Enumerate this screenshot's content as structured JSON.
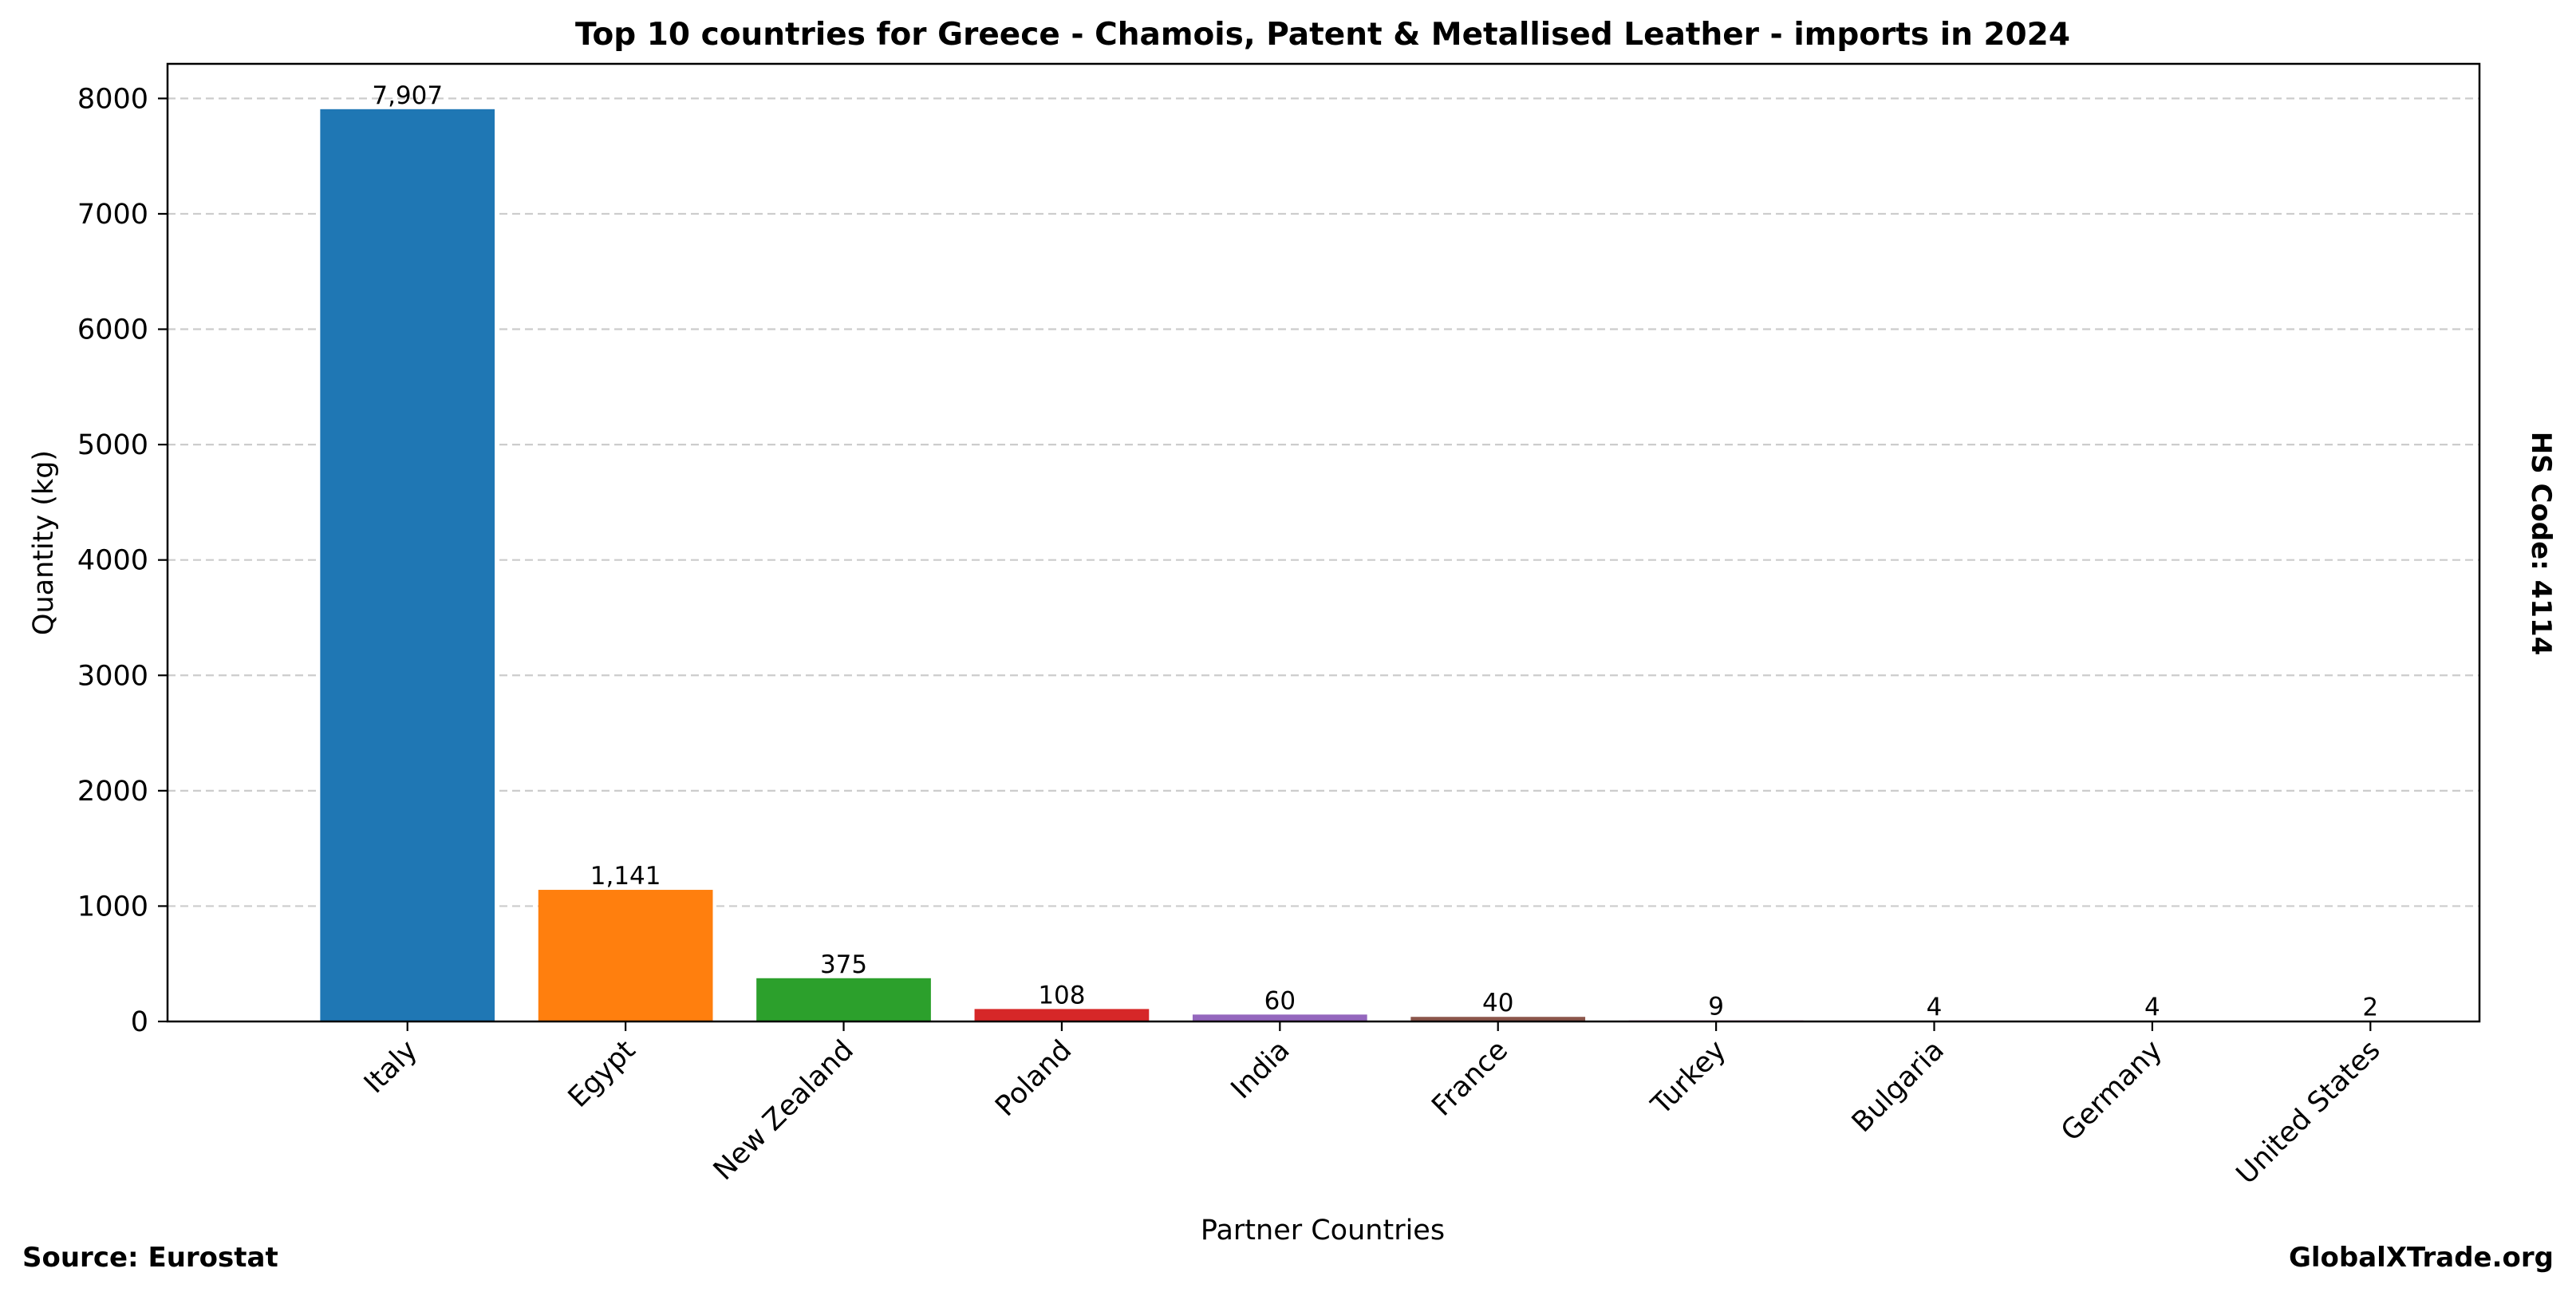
{
  "chart_data": {
    "type": "bar",
    "title": "Top 10 countries for Greece - Chamois, Patent & Metallised Leather - imports in 2024",
    "xlabel": "Partner Countries",
    "ylabel": "Quantity (kg)",
    "categories": [
      "Italy",
      "Egypt",
      "New Zealand",
      "Poland",
      "India",
      "France",
      "Turkey",
      "Bulgaria",
      "Germany",
      "United States"
    ],
    "values": [
      7907,
      1141,
      375,
      108,
      60,
      40,
      9,
      4,
      4,
      2
    ],
    "data_labels": [
      "7,907",
      "1,141",
      "375",
      "108",
      "60",
      "40",
      "9",
      "4",
      "4",
      "2"
    ],
    "colors": [
      "#1f77b4",
      "#ff7f0e",
      "#2ca02c",
      "#d62728",
      "#9467bd",
      "#8c564b",
      "#e377c2",
      "#7f7f7f",
      "#bcbd22",
      "#17becf"
    ],
    "ylim": [
      0,
      8300
    ],
    "yticks": [
      0,
      1000,
      2000,
      3000,
      4000,
      5000,
      6000,
      7000,
      8000
    ],
    "grid": "y-dashed",
    "side_label": "HS Code: 4114"
  },
  "footer": {
    "source": "Source: Eurostat",
    "site": "GlobalXTrade.org"
  }
}
